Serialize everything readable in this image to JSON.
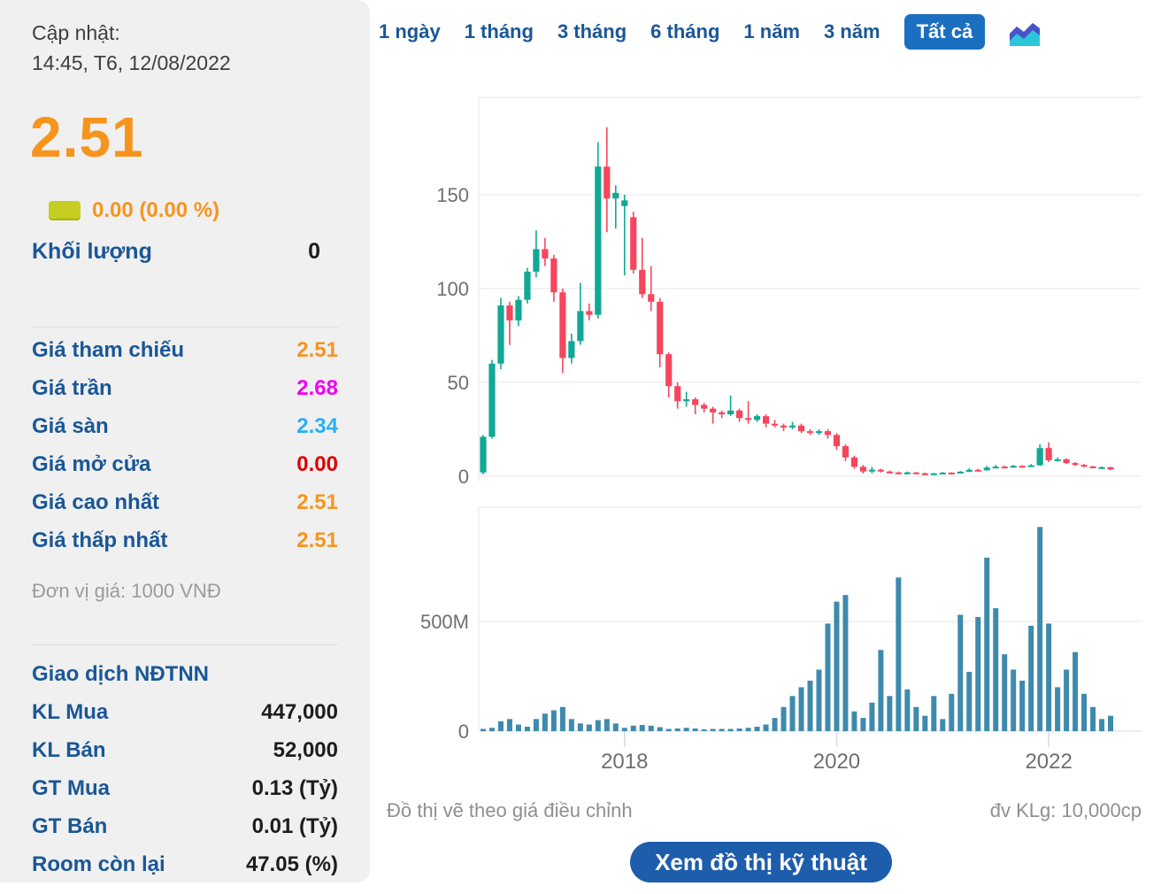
{
  "sidebar": {
    "updated_label": "Cập nhật:",
    "updated_value": "14:45, T6, 12/08/2022",
    "price": "2.51",
    "change_text": "0.00 (0.00 %)",
    "volume_label": "Khối lượng",
    "volume_value": "0",
    "price_table": [
      {
        "label": "Giá tham chiếu",
        "value": "2.51",
        "color": "#f7941e"
      },
      {
        "label": "Giá trần",
        "value": "2.68",
        "color": "#ee00ee"
      },
      {
        "label": "Giá sàn",
        "value": "2.34",
        "color": "#29b0f4"
      },
      {
        "label": "Giá mở cửa",
        "value": "0.00",
        "color": "#dd0000"
      },
      {
        "label": "Giá cao nhất",
        "value": "2.51",
        "color": "#f7941e"
      },
      {
        "label": "Giá thấp nhất",
        "value": "2.51",
        "color": "#f7941e"
      }
    ],
    "unit_note": "Đơn vị giá: 1000 VNĐ",
    "foreign_header": "Giao dịch NĐTNN",
    "foreign_table": [
      {
        "label": "KL Mua",
        "value": "447,000"
      },
      {
        "label": "KL Bán",
        "value": "52,000"
      },
      {
        "label": "GT Mua",
        "value": "0.13 (Tỷ)"
      },
      {
        "label": "GT Bán",
        "value": "0.01 (Tỷ)"
      },
      {
        "label": "Room còn lại",
        "value": "47.05 (%)"
      }
    ]
  },
  "tabs": {
    "items": [
      "1 ngày",
      "1 tháng",
      "3 tháng",
      "6 tháng",
      "1 năm",
      "3 năm",
      "Tất cả"
    ],
    "active": "Tất cả",
    "chart_type_icon": "area-chart-icon"
  },
  "chart_notes": {
    "left": "Đồ thị vẽ theo giá điều chỉnh",
    "right": "đv KLg: 10,000cp"
  },
  "button_label": "Xem đồ thị kỹ thuật",
  "colors": {
    "accent_orange": "#f7941e",
    "label_blue": "#1a5796",
    "active_tab_bg": "#1b6fc1",
    "button_bg": "#1d5dab",
    "candle_up": "#11a894",
    "candle_down": "#f6465d",
    "volume_bar": "#3e8aad",
    "grid": "#e7e7e7",
    "axis_line": "#d5dce4",
    "axis_text": "#6f6f6f"
  },
  "chart_data": [
    {
      "type": "candlestick",
      "title": "",
      "xlabel": "",
      "ylabel": "price (1000 VND, adjusted)",
      "x_note": "monthly candles, ~Sep 2016 to Aug 2022",
      "ylim": [
        -6,
        202
      ],
      "y_ticks": [
        150,
        100,
        50,
        0
      ],
      "x_tick_labels": [
        {
          "index": 16,
          "label": "2018"
        },
        {
          "index": 40,
          "label": "2020"
        },
        {
          "index": 64,
          "label": "2022"
        }
      ],
      "grid": true,
      "legend": false,
      "candles_ohlc": [
        [
          2,
          22,
          1,
          21
        ],
        [
          21,
          62,
          20,
          60
        ],
        [
          60,
          95,
          57,
          91
        ],
        [
          91,
          93,
          70,
          83
        ],
        [
          83,
          96,
          80,
          94
        ],
        [
          94,
          111,
          92,
          109
        ],
        [
          109,
          131,
          106,
          121
        ],
        [
          121,
          127,
          112,
          116
        ],
        [
          116,
          118,
          93,
          98
        ],
        [
          98,
          100,
          55,
          63
        ],
        [
          63,
          76,
          60,
          72
        ],
        [
          72,
          103,
          70,
          88
        ],
        [
          88,
          92,
          83,
          86
        ],
        [
          86,
          178,
          84,
          165
        ],
        [
          165,
          186,
          130,
          148
        ],
        [
          148,
          155,
          132,
          151
        ],
        [
          144,
          150,
          107,
          147
        ],
        [
          138,
          141,
          108,
          110
        ],
        [
          110,
          127,
          95,
          97
        ],
        [
          97,
          112,
          88,
          93
        ],
        [
          93,
          95,
          58,
          65
        ],
        [
          65,
          66,
          42,
          48
        ],
        [
          48,
          50,
          36,
          40
        ],
        [
          40,
          45,
          37,
          41
        ],
        [
          41,
          42,
          33,
          38
        ],
        [
          38,
          39,
          34,
          36
        ],
        [
          36,
          37,
          28,
          34
        ],
        [
          34,
          35,
          31,
          33
        ],
        [
          33,
          43,
          32,
          35
        ],
        [
          35,
          36,
          29,
          31
        ],
        [
          31,
          40,
          28,
          30
        ],
        [
          30,
          33,
          29,
          32
        ],
        [
          32,
          33,
          26,
          28
        ],
        [
          28,
          30,
          26,
          27
        ],
        [
          27,
          28,
          24,
          26
        ],
        [
          26,
          29,
          25,
          27
        ],
        [
          27,
          28,
          23,
          24
        ],
        [
          24,
          25,
          22,
          23
        ],
        [
          23,
          25,
          22,
          24
        ],
        [
          24,
          25,
          20,
          22
        ],
        [
          22,
          23,
          14,
          16
        ],
        [
          16,
          17,
          8,
          10
        ],
        [
          10,
          11,
          4,
          5
        ],
        [
          5,
          6,
          1.5,
          2.5
        ],
        [
          2.5,
          5,
          1.5,
          3.5
        ],
        [
          3.5,
          4,
          2,
          2.5
        ],
        [
          2.5,
          3,
          1.5,
          2
        ],
        [
          2,
          2.5,
          1,
          1.5
        ],
        [
          1.5,
          2.5,
          1,
          2
        ],
        [
          2,
          2.2,
          1.2,
          1.5
        ],
        [
          1.5,
          2,
          1,
          1.3
        ],
        [
          1.3,
          1.8,
          1,
          1.5
        ],
        [
          1.5,
          2.2,
          1.3,
          1.9
        ],
        [
          1.9,
          2.1,
          1.4,
          1.6
        ],
        [
          1.6,
          2.8,
          1.5,
          2.4
        ],
        [
          2.4,
          4.2,
          2.2,
          3.4
        ],
        [
          3.4,
          4,
          2.8,
          3.1
        ],
        [
          3.1,
          5.5,
          3,
          4.6
        ],
        [
          4.6,
          6,
          4.2,
          5.1
        ],
        [
          5.1,
          5.6,
          4.4,
          4.8
        ],
        [
          4.8,
          6,
          4.6,
          5.5
        ],
        [
          5.5,
          5.8,
          4.8,
          5.2
        ],
        [
          5.2,
          6.5,
          5,
          5.8
        ],
        [
          5.8,
          17,
          5.5,
          15
        ],
        [
          15,
          18,
          7.5,
          8.5
        ],
        [
          8.5,
          10,
          7.8,
          9
        ],
        [
          9,
          9.5,
          6.5,
          7
        ],
        [
          7,
          7.5,
          5.5,
          6
        ],
        [
          6,
          6.5,
          4.8,
          5.2
        ],
        [
          5.2,
          5.5,
          4.2,
          4.5
        ],
        [
          4.5,
          5.2,
          4,
          4.8
        ],
        [
          4.8,
          5,
          3.2,
          3.6
        ]
      ]
    },
    {
      "type": "bar",
      "name": "volume",
      "ylabel": "volume (unit 10,000cp)",
      "y_ticks": [
        {
          "value": 500,
          "label": "500M"
        },
        {
          "value": 0,
          "label": "0"
        }
      ],
      "ylim": [
        0,
        1020
      ],
      "grid": true,
      "values_millions": [
        10,
        15,
        45,
        55,
        30,
        20,
        55,
        80,
        95,
        110,
        55,
        35,
        30,
        50,
        55,
        35,
        15,
        25,
        28,
        25,
        18,
        10,
        12,
        15,
        12,
        8,
        10,
        10,
        10,
        12,
        15,
        20,
        30,
        60,
        110,
        160,
        200,
        230,
        280,
        490,
        590,
        620,
        90,
        60,
        130,
        370,
        160,
        700,
        190,
        110,
        70,
        160,
        55,
        170,
        530,
        270,
        520,
        790,
        560,
        350,
        280,
        230,
        480,
        930,
        490,
        200,
        280,
        360,
        170,
        110,
        55,
        70
      ]
    }
  ]
}
